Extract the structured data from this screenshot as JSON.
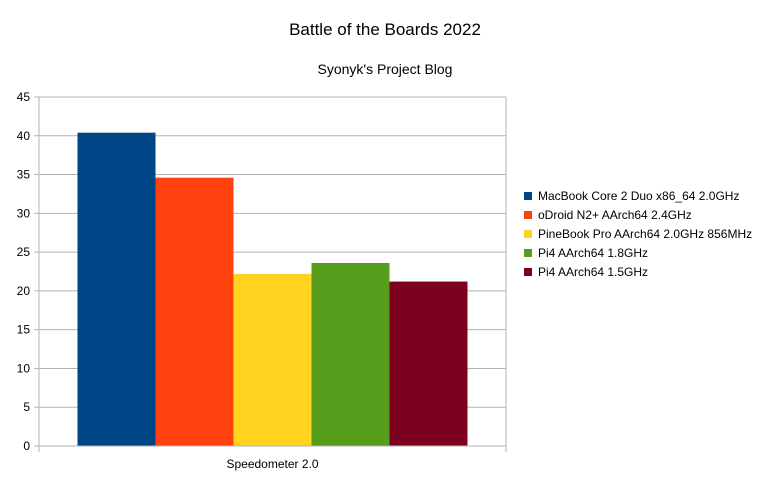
{
  "chart_data": {
    "type": "bar",
    "title": "Battle of the Boards 2022",
    "subtitle": "Syonyk's Project Blog",
    "categories": [
      "Speedometer 2.0"
    ],
    "series": [
      {
        "name": "MacBook Core 2 Duo x86_64 2.0GHz",
        "color": "#004586",
        "values": [
          40.4
        ]
      },
      {
        "name": "oDroid N2+ AArch64 2.4GHz",
        "color": "#ff420e",
        "values": [
          34.6
        ]
      },
      {
        "name": "PineBook Pro AArch64 2.0GHz 856MHz",
        "color": "#ffd320",
        "values": [
          22.2
        ]
      },
      {
        "name": "Pi4 AArch64 1.8GHz",
        "color": "#579d1c",
        "values": [
          23.6
        ]
      },
      {
        "name": "Pi4 AArch64 1.5GHz",
        "color": "#7e0021",
        "values": [
          21.2
        ]
      }
    ],
    "yticks": [
      0,
      5,
      10,
      15,
      20,
      25,
      30,
      35,
      40,
      45
    ],
    "ylim": [
      0,
      45
    ],
    "xlabel": "",
    "ylabel": "",
    "grid": true,
    "legend": "right"
  }
}
